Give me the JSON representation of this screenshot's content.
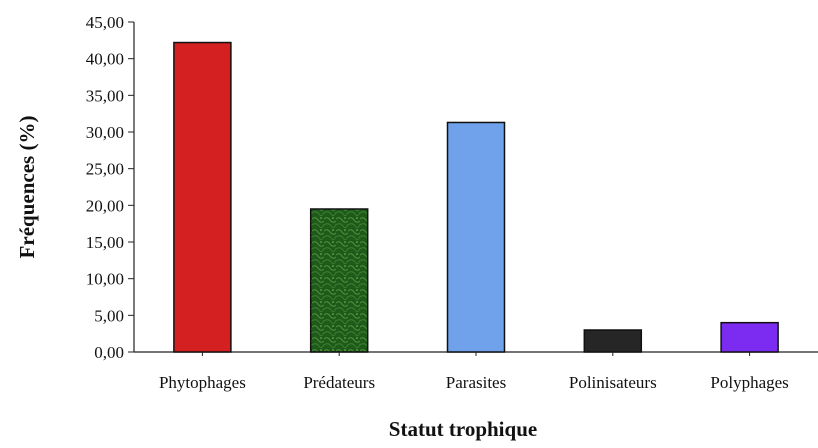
{
  "chart_data": {
    "type": "bar",
    "title": "",
    "xlabel": "Statut trophique",
    "ylabel": "Fréquences (%)",
    "categories": [
      "Phytophages",
      "Prédateurs",
      "Parasites",
      "Polinisateurs",
      "Polyphages"
    ],
    "values": [
      42.2,
      19.5,
      31.3,
      3.0,
      4.0
    ],
    "ylim": [
      0,
      45
    ],
    "ytick_labels": [
      "0,00",
      "5,00",
      "10,00",
      "15,00",
      "20,00",
      "25,00",
      "30,00",
      "35,00",
      "40,00",
      "45,00"
    ],
    "bar_colors": [
      "#d42020",
      "#1f5a1a",
      "#6fa2ea",
      "#262626",
      "#7b2cf0"
    ],
    "grid": false,
    "legend": "none"
  }
}
